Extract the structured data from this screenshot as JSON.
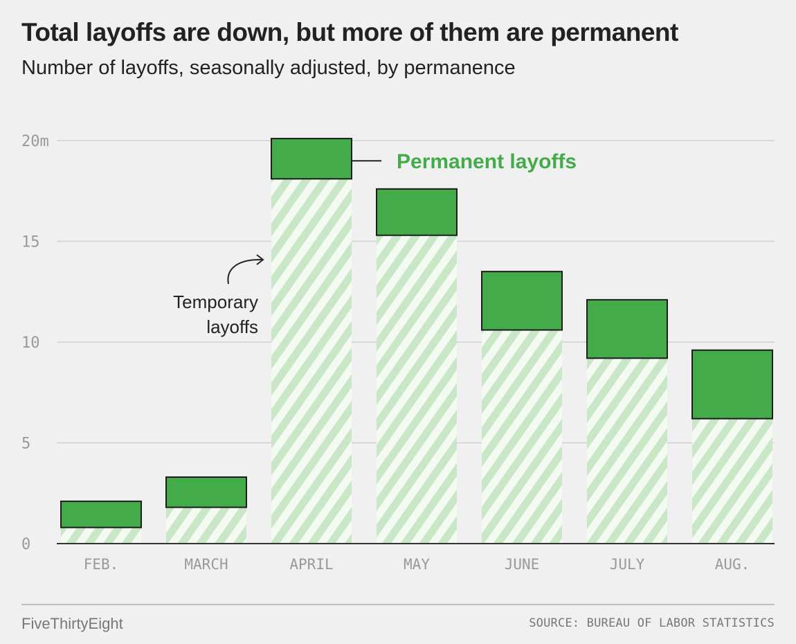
{
  "header": {
    "title": "Total layoffs are down, but more of them are permanent",
    "subtitle": "Number of layoffs, seasonally adjusted, by permanence"
  },
  "footer": {
    "brand": "FiveThirtyEight",
    "source": "SOURCE: BUREAU OF LABOR STATISTICS"
  },
  "colors": {
    "background": "#f0f0f0",
    "permanent": "#44ab4a",
    "temporary_stripe": "#c9e6c6",
    "grid": "#cfcfcf",
    "axis_text": "#999999"
  },
  "chart_data": {
    "type": "bar",
    "stacked": true,
    "categories": [
      "FEB.",
      "MARCH",
      "APRIL",
      "MAY",
      "JUNE",
      "JULY",
      "AUG."
    ],
    "series": [
      {
        "name": "Temporary layoffs",
        "values": [
          0.8,
          1.8,
          18.1,
          15.3,
          10.6,
          9.2,
          6.2
        ]
      },
      {
        "name": "Permanent layoffs",
        "values": [
          1.3,
          1.5,
          2.0,
          2.3,
          2.9,
          2.9,
          3.4
        ]
      }
    ],
    "ylim": [
      0,
      20
    ],
    "yticks": [
      0,
      5,
      10,
      15,
      20
    ],
    "ytick_labels": [
      "0",
      "5",
      "10",
      "15",
      "20m"
    ],
    "grid": true,
    "annotations": {
      "permanent_label": "Permanent layoffs",
      "temporary_label": [
        "Temporary",
        "layoffs"
      ]
    }
  }
}
